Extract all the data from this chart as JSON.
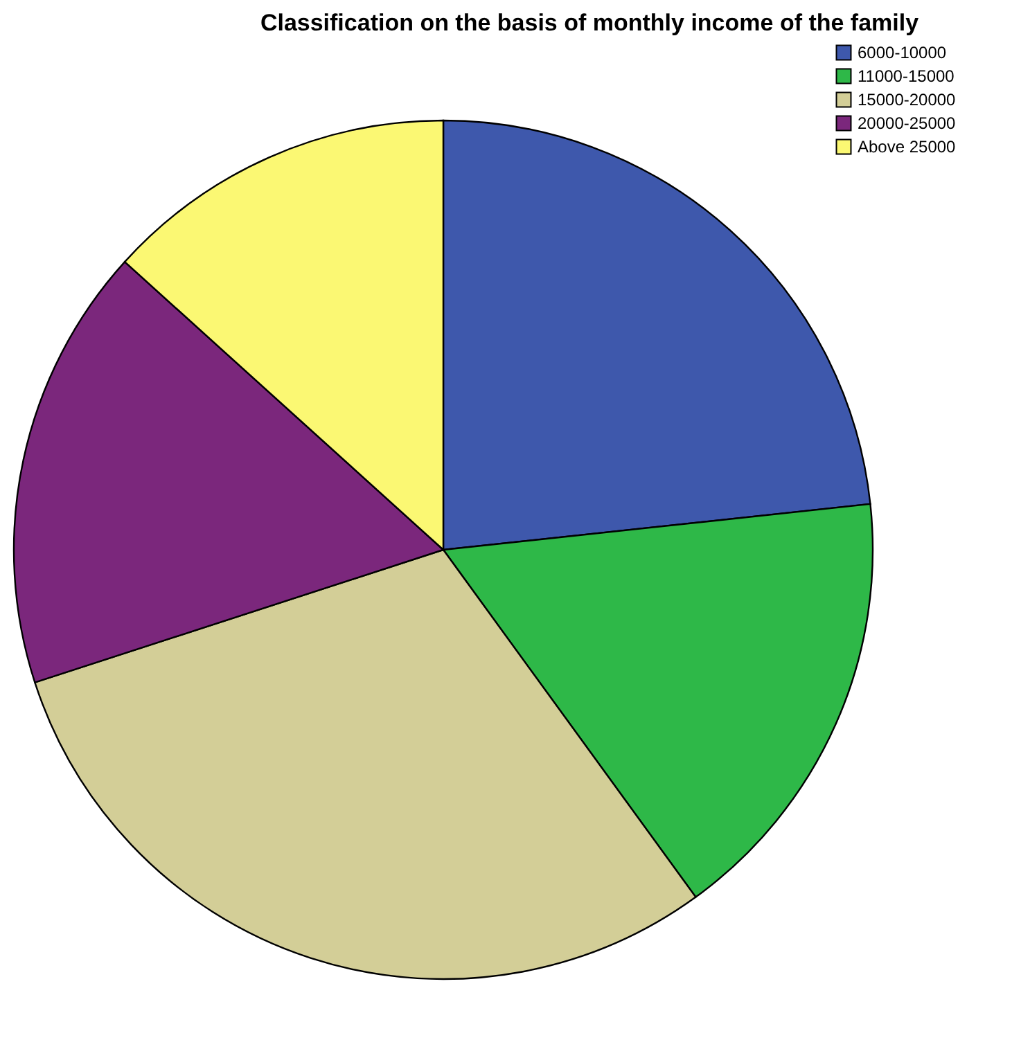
{
  "chart_data": {
    "type": "pie",
    "title": "Classification on the basis of monthly income of the family",
    "categories": [
      "6000-10000",
      "11000-15000",
      "15000-20000",
      "20000-25000",
      "Above 25000"
    ],
    "values": [
      23.3,
      16.7,
      30,
      16.7,
      13.3
    ],
    "colors": [
      "#3e58ac",
      "#2eb848",
      "#d3ce97",
      "#7b277c",
      "#fbf873"
    ],
    "legend": "top right"
  }
}
